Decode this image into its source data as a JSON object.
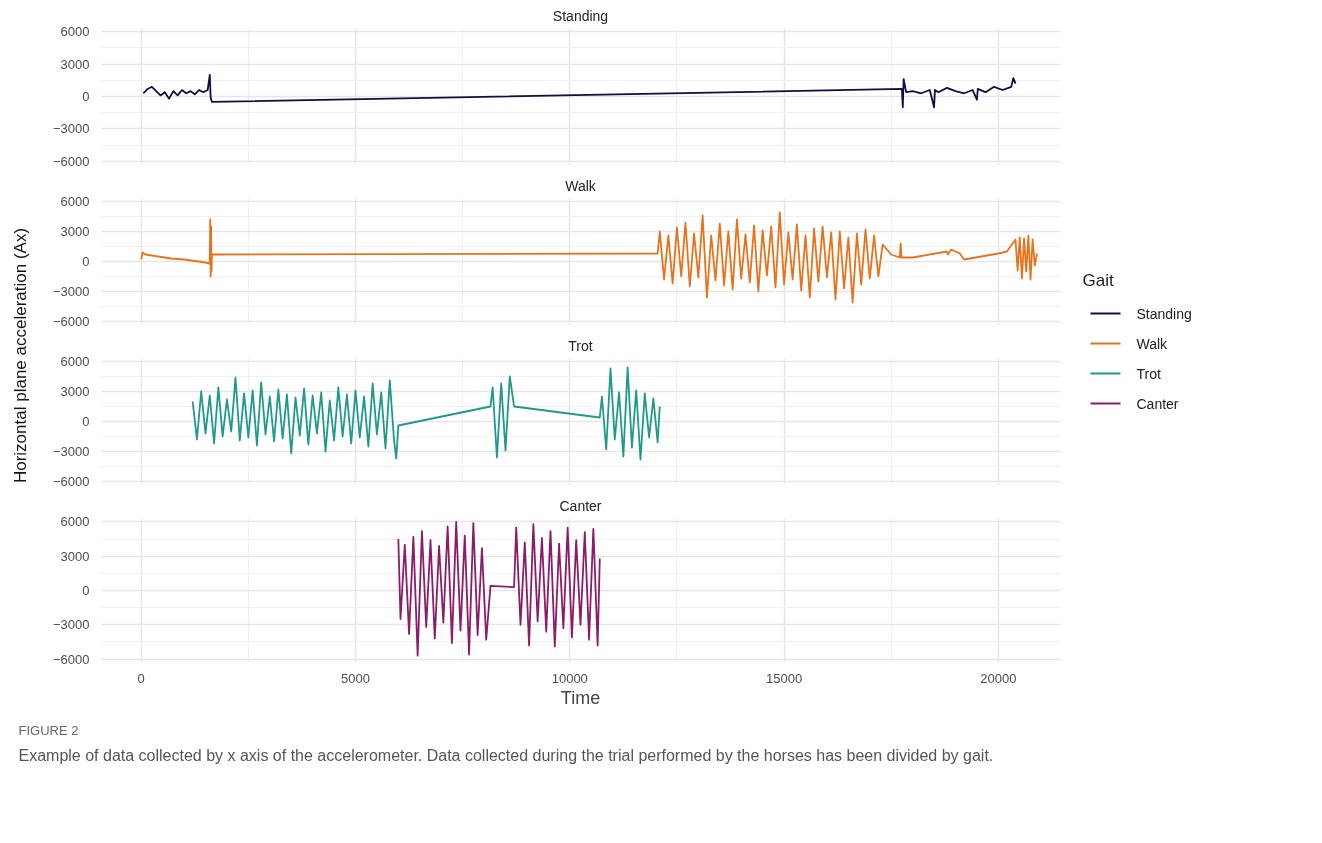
{
  "chart_data": [
    {
      "type": "line",
      "title": "Standing",
      "xlim": [
        -950,
        21450
      ],
      "xticks": [
        0,
        5000,
        10000,
        15000,
        20000
      ],
      "ylim": [
        -6300,
        6300
      ],
      "yticks": [
        -6000,
        -3000,
        0,
        3000,
        6000
      ],
      "grid": true,
      "tick_labels": "y",
      "legend": "right",
      "legend_title": "Gait",
      "series": [
        {
          "name": "Standing",
          "color": "#0d0f45",
          "x": [
            50,
            150,
            250,
            350,
            450,
            550,
            650,
            750,
            850,
            950,
            1050,
            1150,
            1250,
            1350,
            1450,
            1550,
            1600,
            1620,
            1650,
            17750,
            17770,
            17790,
            17850,
            18000,
            18200,
            18400,
            18500,
            18520,
            18600,
            18800,
            19000,
            19200,
            19400,
            19500,
            19520,
            19700,
            19900,
            20100,
            20300,
            20350,
            20400
          ],
          "values": [
            300,
            700,
            900,
            500,
            100,
            400,
            -200,
            500,
            100,
            600,
            300,
            500,
            200,
            600,
            400,
            600,
            2000,
            -100,
            -500,
            700,
            -1000,
            1600,
            400,
            500,
            300,
            600,
            -1000,
            600,
            400,
            800,
            500,
            300,
            600,
            -300,
            700,
            400,
            900,
            600,
            900,
            1700,
            1200
          ]
        }
      ]
    },
    {
      "type": "line",
      "title": "Walk",
      "ylabel": "Horizontal plane acceleration (Ax)",
      "xlim": [
        -950,
        21450
      ],
      "xticks": [
        0,
        5000,
        10000,
        15000,
        20000
      ],
      "ylim": [
        -6300,
        6300
      ],
      "yticks": [
        -6000,
        -3000,
        0,
        3000,
        6000
      ],
      "grid": true,
      "tick_labels": "y",
      "legend": "right",
      "series": [
        {
          "name": "Walk",
          "color": "#e8731c",
          "x": [
            0,
            30,
            100,
            700,
            1000,
            1500,
            1600,
            1610,
            1620,
            1630,
            1640,
            1650,
            1700,
            12050,
            12100,
            12200,
            12300,
            12400,
            12500,
            12600,
            12700,
            12800,
            12900,
            13000,
            13100,
            13200,
            13300,
            13400,
            13500,
            13600,
            13700,
            13800,
            13900,
            14000,
            14100,
            14200,
            14300,
            14400,
            14500,
            14600,
            14700,
            14800,
            14900,
            15000,
            15100,
            15200,
            15300,
            15400,
            15500,
            15600,
            15700,
            15800,
            15900,
            16000,
            16100,
            16200,
            16300,
            16400,
            16500,
            16600,
            16700,
            16800,
            16900,
            17000,
            17100,
            17200,
            17300,
            17500,
            17700,
            17720,
            17740,
            18000,
            18800,
            18820,
            18900,
            19100,
            19200,
            19600,
            20000,
            20200,
            20400,
            20450,
            20500,
            20550,
            20600,
            20650,
            20700,
            20750,
            20800,
            20850,
            20900
          ],
          "values": [
            200,
            900,
            700,
            300,
            200,
            -100,
            -200,
            4200,
            -1500,
            3500,
            -1000,
            700,
            700,
            800,
            3000,
            -1800,
            2600,
            -2200,
            3400,
            -1500,
            3900,
            -2500,
            2800,
            -1600,
            4600,
            -3600,
            2600,
            -1900,
            3800,
            -2400,
            3000,
            -2800,
            4200,
            -1700,
            2700,
            -2100,
            3600,
            -3000,
            3100,
            -1400,
            3500,
            -2600,
            4900,
            -2300,
            2900,
            -1800,
            3700,
            -2900,
            2600,
            -3600,
            3300,
            -2000,
            3500,
            -1600,
            2900,
            -3800,
            3000,
            -2700,
            2400,
            -4100,
            2800,
            -2300,
            3200,
            -1700,
            2600,
            -1500,
            1700,
            700,
            400,
            1800,
            400,
            400,
            1000,
            700,
            1200,
            800,
            200,
            500,
            800,
            1000,
            2200,
            -900,
            2400,
            -1700,
            2300,
            -1000,
            2600,
            -1800,
            2200,
            -400,
            800
          ]
        }
      ]
    },
    {
      "type": "line",
      "title": "Trot",
      "xlim": [
        -950,
        21450
      ],
      "xticks": [
        0,
        5000,
        10000,
        15000,
        20000
      ],
      "ylim": [
        -6300,
        6300
      ],
      "yticks": [
        -6000,
        -3000,
        0,
        3000,
        6000
      ],
      "grid": true,
      "tick_labels": "y",
      "legend": "right",
      "series": [
        {
          "name": "Trot",
          "color": "#1f9a8a",
          "x": [
            1200,
            1300,
            1400,
            1500,
            1600,
            1700,
            1800,
            1900,
            2000,
            2100,
            2200,
            2300,
            2400,
            2500,
            2600,
            2700,
            2800,
            2900,
            3000,
            3100,
            3200,
            3300,
            3400,
            3500,
            3600,
            3700,
            3800,
            3900,
            4000,
            4100,
            4200,
            4300,
            4400,
            4500,
            4600,
            4700,
            4800,
            4900,
            5000,
            5100,
            5200,
            5300,
            5400,
            5500,
            5600,
            5700,
            5800,
            5900,
            5950,
            6000,
            8150,
            8200,
            8300,
            8400,
            8500,
            8600,
            8700,
            10700,
            10750,
            10850,
            10950,
            11050,
            11150,
            11250,
            11350,
            11450,
            11550,
            11650,
            11750,
            11850,
            11950,
            12050,
            12100
          ],
          "values": [
            2000,
            -1800,
            3000,
            -1200,
            2600,
            -2200,
            3400,
            -1500,
            2200,
            -1000,
            4400,
            -1900,
            2800,
            -1600,
            3100,
            -2400,
            3900,
            -1300,
            2500,
            -2000,
            3200,
            -1700,
            2700,
            -3200,
            2400,
            -1400,
            3300,
            -2300,
            2600,
            -1200,
            2900,
            -3000,
            2100,
            -1900,
            3400,
            -1500,
            2700,
            -2200,
            3100,
            -1600,
            2500,
            -2500,
            3800,
            -1300,
            2900,
            -2700,
            4100,
            -1900,
            -3700,
            -400,
            1500,
            3400,
            -3600,
            3800,
            -2900,
            4500,
            1500,
            400,
            2500,
            -2800,
            5300,
            -1800,
            2900,
            -3500,
            5400,
            -2600,
            3100,
            -3800,
            2800,
            -1600,
            2300,
            -2100,
            1500
          ]
        }
      ]
    },
    {
      "type": "line",
      "title": "Canter",
      "xlabel": "Time",
      "xlim": [
        -950,
        21450
      ],
      "xticks": [
        0,
        5000,
        10000,
        15000,
        20000
      ],
      "ylim": [
        -6300,
        6300
      ],
      "yticks": [
        -6000,
        -3000,
        0,
        3000,
        6000
      ],
      "grid": true,
      "legend": "right",
      "annotations": [
        "FIGURE 2",
        "Example of data collected by x axis of the accelerometer. Data collected during the trial performed by the horses has been divided by gait."
      ],
      "series": [
        {
          "name": "Canter",
          "color": "#8a1c6a",
          "x": [
            6000,
            6050,
            6150,
            6250,
            6350,
            6450,
            6550,
            6650,
            6750,
            6850,
            6950,
            7050,
            7150,
            7250,
            7350,
            7450,
            7550,
            7650,
            7750,
            7850,
            7950,
            8050,
            8150,
            8700,
            8750,
            8850,
            8950,
            9050,
            9150,
            9250,
            9350,
            9450,
            9550,
            9650,
            9750,
            9850,
            9950,
            10050,
            10150,
            10250,
            10350,
            10450,
            10550,
            10650,
            10700
          ],
          "values": [
            4500,
            -2500,
            4000,
            -3800,
            4700,
            -5700,
            5200,
            -3200,
            4400,
            -4200,
            3900,
            -2800,
            5600,
            -4600,
            6000,
            -3500,
            4800,
            -5600,
            5900,
            -3900,
            3700,
            -4300,
            400,
            300,
            5500,
            -3000,
            4200,
            -4800,
            5800,
            -2700,
            4600,
            -3600,
            5200,
            -4900,
            4100,
            -3300,
            5500,
            -4100,
            4400,
            -3000,
            5100,
            -4300,
            5400,
            -4800,
            2800
          ]
        }
      ]
    }
  ]
}
